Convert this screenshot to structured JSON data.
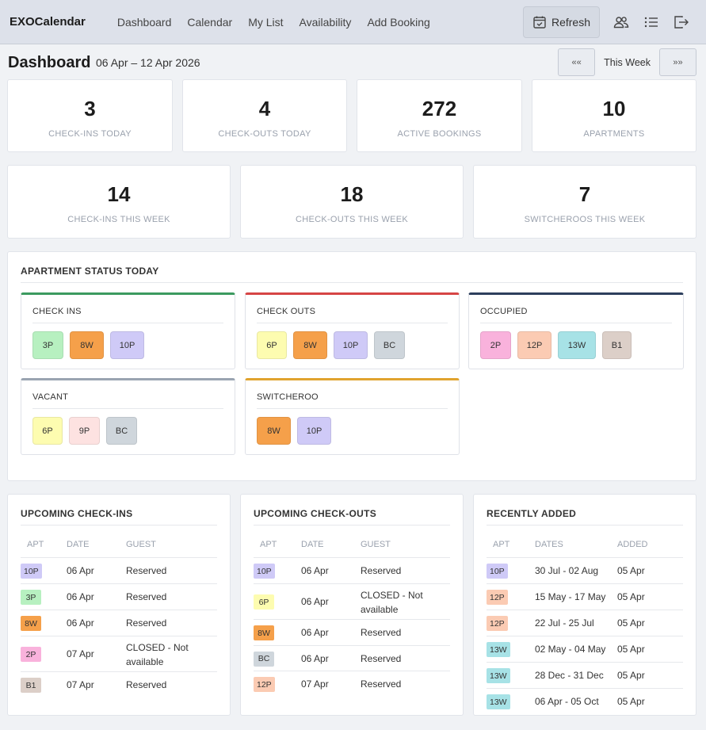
{
  "nav": {
    "brand": "EXOCalendar",
    "links": [
      "Dashboard",
      "Calendar",
      "My List",
      "Availability",
      "Add Booking"
    ],
    "refresh_label": "Refresh",
    "icons": [
      "users-icon",
      "list-icon",
      "logout-icon"
    ]
  },
  "header": {
    "title": "Dashboard",
    "date_range": "06 Apr – 12 Apr 2026",
    "prev_label": "««",
    "week_label": "This Week",
    "next_label": "»»"
  },
  "stats_row1": [
    {
      "value": "3",
      "label": "CHECK-INS TODAY"
    },
    {
      "value": "4",
      "label": "CHECK-OUTS TODAY"
    },
    {
      "value": "272",
      "label": "ACTIVE BOOKINGS"
    },
    {
      "value": "10",
      "label": "APARTMENTS"
    }
  ],
  "stats_row2": [
    {
      "value": "14",
      "label": "CHECK-INS THIS WEEK"
    },
    {
      "value": "18",
      "label": "CHECK-OUTS THIS WEEK"
    },
    {
      "value": "7",
      "label": "SWITCHEROOS THIS WEEK"
    }
  ],
  "apt_colors": {
    "3P": "#b7f0c0",
    "8W": "#f5a04a",
    "10P": "#cfcaf7",
    "6P": "#fdfcb0",
    "BC": "#cfd6dc",
    "2P": "#f9b2dc",
    "12P": "#fbcbb3",
    "13W": "#a7e2e6",
    "B1": "#dccfc8",
    "9P": "#fde2e1"
  },
  "status_panel": {
    "title": "APARTMENT STATUS TODAY",
    "groups": [
      {
        "title": "CHECK INS",
        "color": "#3c9a5f",
        "apts": [
          "3P",
          "8W",
          "10P"
        ]
      },
      {
        "title": "CHECK OUTS",
        "color": "#d64545",
        "apts": [
          "6P",
          "8W",
          "10P",
          "BC"
        ]
      },
      {
        "title": "OCCUPIED",
        "color": "#2d3e5c",
        "apts": [
          "2P",
          "12P",
          "13W",
          "B1"
        ]
      },
      {
        "title": "VACANT",
        "color": "#9aa4b1",
        "apts": [
          "6P",
          "9P",
          "BC"
        ]
      },
      {
        "title": "SWITCHEROO",
        "color": "#e0a32e",
        "apts": [
          "8W",
          "10P"
        ]
      }
    ]
  },
  "upcoming_checkins": {
    "title": "UPCOMING CHECK-INS",
    "headers": [
      "APT",
      "DATE",
      "GUEST"
    ],
    "rows": [
      {
        "apt": "10P",
        "date": "06 Apr",
        "guest": "Reserved"
      },
      {
        "apt": "3P",
        "date": "06 Apr",
        "guest": "Reserved"
      },
      {
        "apt": "8W",
        "date": "06 Apr",
        "guest": "Reserved"
      },
      {
        "apt": "2P",
        "date": "07 Apr",
        "guest": "CLOSED - Not available"
      },
      {
        "apt": "B1",
        "date": "07 Apr",
        "guest": "Reserved"
      }
    ]
  },
  "upcoming_checkouts": {
    "title": "UPCOMING CHECK-OUTS",
    "headers": [
      "APT",
      "DATE",
      "GUEST"
    ],
    "rows": [
      {
        "apt": "10P",
        "date": "06 Apr",
        "guest": "Reserved"
      },
      {
        "apt": "6P",
        "date": "06 Apr",
        "guest": "CLOSED - Not available"
      },
      {
        "apt": "8W",
        "date": "06 Apr",
        "guest": "Reserved"
      },
      {
        "apt": "BC",
        "date": "06 Apr",
        "guest": "Reserved"
      },
      {
        "apt": "12P",
        "date": "07 Apr",
        "guest": "Reserved"
      }
    ]
  },
  "recently_added": {
    "title": "RECENTLY ADDED",
    "headers": [
      "APT",
      "DATES",
      "ADDED"
    ],
    "rows": [
      {
        "apt": "10P",
        "dates": "30 Jul - 02 Aug",
        "added": "05 Apr"
      },
      {
        "apt": "12P",
        "dates": "15 May - 17 May",
        "added": "05 Apr"
      },
      {
        "apt": "12P",
        "dates": "22 Jul - 25 Jul",
        "added": "05 Apr"
      },
      {
        "apt": "13W",
        "dates": "02 May - 04 May",
        "added": "05 Apr"
      },
      {
        "apt": "13W",
        "dates": "28 Dec - 31 Dec",
        "added": "05 Apr"
      },
      {
        "apt": "13W",
        "dates": "06 Apr - 05 Oct",
        "added": "05 Apr"
      }
    ]
  }
}
